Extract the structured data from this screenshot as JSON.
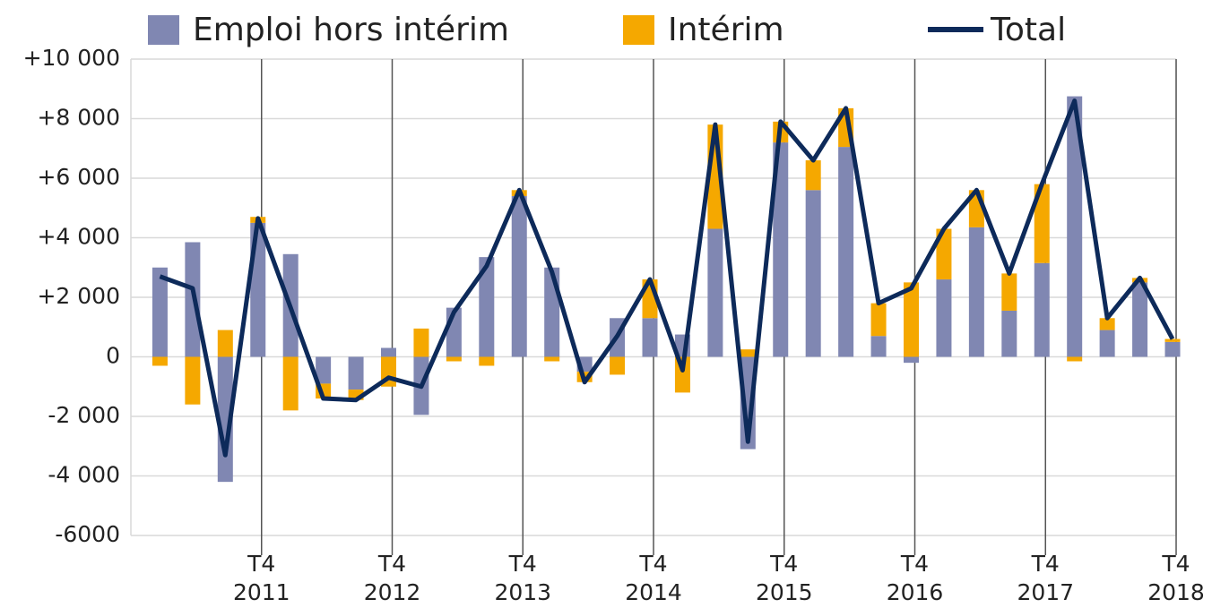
{
  "chart_data": {
    "type": "bar",
    "categories": [
      null,
      null,
      null,
      "T4 2011",
      null,
      null,
      null,
      "T4 2012",
      null,
      null,
      null,
      "T4 2013",
      null,
      null,
      null,
      "T4 2014",
      null,
      null,
      null,
      "T4 2015",
      null,
      null,
      null,
      "T4 2016",
      null,
      null,
      null,
      "T4 2017",
      null,
      null,
      null,
      "T4 2018"
    ],
    "series": [
      {
        "name": "Emploi hors intérim",
        "color": "#8087b2",
        "kind": "bar",
        "values": [
          3000,
          3850,
          -4200,
          4500,
          3450,
          -900,
          -1100,
          300,
          -1950,
          1650,
          3350,
          5400,
          3000,
          -500,
          1300,
          1300,
          750,
          4300,
          -3100,
          7200,
          5600,
          7050,
          700,
          -200,
          2600,
          4350,
          1550,
          3150,
          8750,
          900,
          2500,
          500
        ]
      },
      {
        "name": "Intérim",
        "color": "#f5a800",
        "kind": "bar",
        "values": [
          -300,
          -1600,
          900,
          200,
          -1800,
          -500,
          -350,
          -1000,
          950,
          -150,
          -300,
          200,
          -150,
          -350,
          -600,
          1300,
          -1200,
          3500,
          250,
          700,
          1000,
          1300,
          1100,
          2500,
          1700,
          1250,
          1250,
          2650,
          -150,
          400,
          150,
          100
        ]
      },
      {
        "name": "Total",
        "color": "#0d2a5a",
        "kind": "line",
        "values": [
          2700,
          2300,
          -3300,
          4650,
          1650,
          -1400,
          -1450,
          -700,
          -1000,
          1500,
          3050,
          5600,
          2850,
          -850,
          700,
          2600,
          -450,
          7800,
          -2850,
          7900,
          6600,
          8350,
          1800,
          2300,
          4300,
          5600,
          2800,
          5800,
          8600,
          1300,
          2650,
          600
        ]
      }
    ],
    "ylim": [
      -6000,
      10000
    ],
    "yticks": [
      -6000,
      {
        "value": -4000,
        "label": "-4 000"
      },
      {
        "value": -2000,
        "label": "-2 000"
      },
      0,
      {
        "value": 2000,
        "label": "+2 000"
      },
      {
        "value": 4000,
        "label": "+4 000"
      },
      {
        "value": 6000,
        "label": "+6 000"
      },
      {
        "value": 8000,
        "label": "+8 000"
      },
      {
        "value": 10000,
        "label": "+10 000"
      }
    ],
    "grid": true,
    "legend": "top"
  }
}
